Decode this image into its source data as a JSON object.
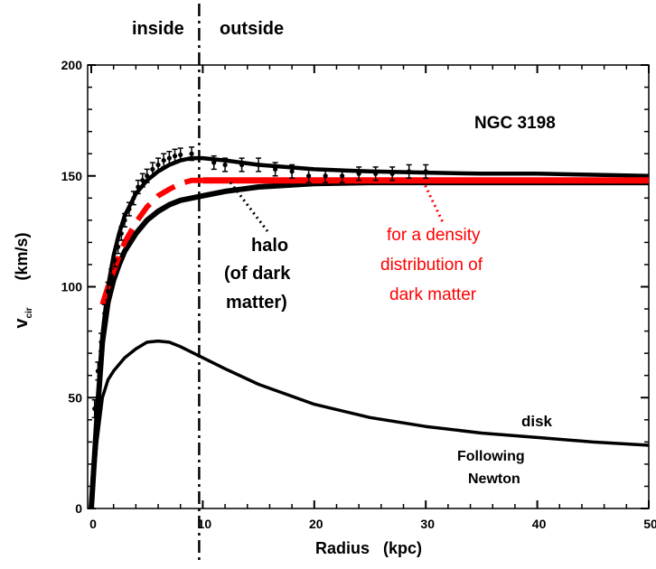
{
  "chart_data": {
    "type": "line",
    "title": "NGC 3198",
    "xlabel": "Radius   (kpc)",
    "ylabel": "v",
    "ylabel_sub": "cir",
    "ylabel_unit": "(km/s)",
    "xlim": [
      -0.5,
      50
    ],
    "ylim": [
      0,
      200
    ],
    "x_ticks": [
      0,
      10,
      20,
      30,
      40,
      50
    ],
    "y_ticks": [
      0,
      50,
      100,
      150,
      200
    ],
    "x_tick_labels": [
      "0",
      "10",
      "20",
      "30",
      "40",
      "50"
    ],
    "y_tick_labels": [
      "0",
      "50",
      "100",
      "150",
      "200"
    ],
    "grid": false,
    "divider_x": 10,
    "region_labels": {
      "inside": "inside",
      "outside": "outside"
    },
    "annotations": {
      "halo": [
        "halo",
        "(of dark",
        "matter)"
      ],
      "density": [
        "for a density",
        "distribution of",
        "dark matter"
      ],
      "disk": "disk",
      "newton": [
        "Following",
        "Newton"
      ]
    },
    "colors": {
      "axes": "#000000",
      "model": "#ff0000",
      "curves": "#000000"
    },
    "series": [
      {
        "kind": "points",
        "x": [
          0.3,
          0.6,
          0.9,
          1.2,
          1.5,
          1.8,
          2.1,
          2.4,
          2.7,
          3.0,
          3.4,
          3.8,
          4.2,
          4.6,
          5.0,
          5.5,
          6.0,
          6.5,
          7.0,
          7.5,
          8.0,
          9.0,
          11.0,
          12.0,
          13.5,
          15.0,
          16.5,
          18.0,
          19.5,
          21.0,
          22.5,
          24.0,
          25.5,
          27.0,
          28.5,
          30.0
        ],
        "y": [
          45,
          62,
          75,
          88,
          98,
          105,
          112,
          118,
          124,
          130,
          135,
          140,
          145,
          148,
          150,
          153,
          155,
          157,
          158,
          159,
          159.5,
          160,
          156,
          155,
          155,
          155,
          153,
          152,
          150,
          150,
          150,
          151,
          151,
          151,
          152,
          152
        ],
        "err": [
          4,
          4,
          4,
          4,
          4,
          3,
          3,
          3,
          3,
          3,
          3,
          3,
          3,
          3,
          3,
          3,
          3,
          3,
          3,
          3,
          3,
          3,
          3,
          3,
          3,
          3,
          3,
          3,
          3,
          3,
          3,
          3,
          3,
          3,
          3,
          3
        ]
      },
      {
        "kind": "total",
        "x": [
          0,
          0.5,
          1,
          1.5,
          2,
          2.5,
          3,
          4,
          5,
          6,
          7,
          8,
          9,
          10,
          12,
          15,
          20,
          25,
          30,
          35,
          40,
          45,
          50
        ],
        "y": [
          0,
          40,
          78,
          100,
          114,
          124,
          132,
          142,
          148,
          152,
          155,
          157,
          158,
          158,
          157,
          155,
          153,
          152,
          151.5,
          151,
          151,
          150.5,
          150
        ]
      },
      {
        "kind": "halo",
        "x": [
          0,
          0.5,
          1,
          1.5,
          2,
          2.5,
          3,
          4,
          5,
          6,
          7,
          8,
          9,
          10,
          12,
          15,
          20,
          25,
          30,
          40,
          50
        ],
        "y": [
          0,
          40,
          75,
          93,
          103,
          110,
          116,
          124,
          130,
          134,
          137,
          139,
          140,
          141,
          143,
          145,
          146.5,
          147,
          147,
          147,
          147
        ]
      },
      {
        "kind": "model",
        "x": [
          1.0,
          1.5,
          2,
          2.5,
          3,
          4,
          5,
          6,
          7,
          8,
          9,
          10
        ],
        "y": [
          92,
          100,
          107,
          114,
          120,
          129,
          136,
          141,
          144,
          146.5,
          148,
          148
        ]
      },
      {
        "kind": "model-flat",
        "x": [
          10,
          50
        ],
        "y": [
          148,
          148
        ]
      },
      {
        "kind": "disk",
        "x": [
          0,
          0.5,
          1,
          1.5,
          2,
          3,
          4,
          5,
          6,
          7,
          8,
          10,
          12,
          15,
          20,
          25,
          30,
          35,
          40,
          45,
          50
        ],
        "y": [
          0,
          30,
          50,
          58,
          62,
          68,
          72,
          75,
          75.5,
          75,
          73,
          68,
          63,
          56,
          47,
          41,
          37,
          34,
          32,
          30,
          28.5
        ]
      }
    ]
  }
}
